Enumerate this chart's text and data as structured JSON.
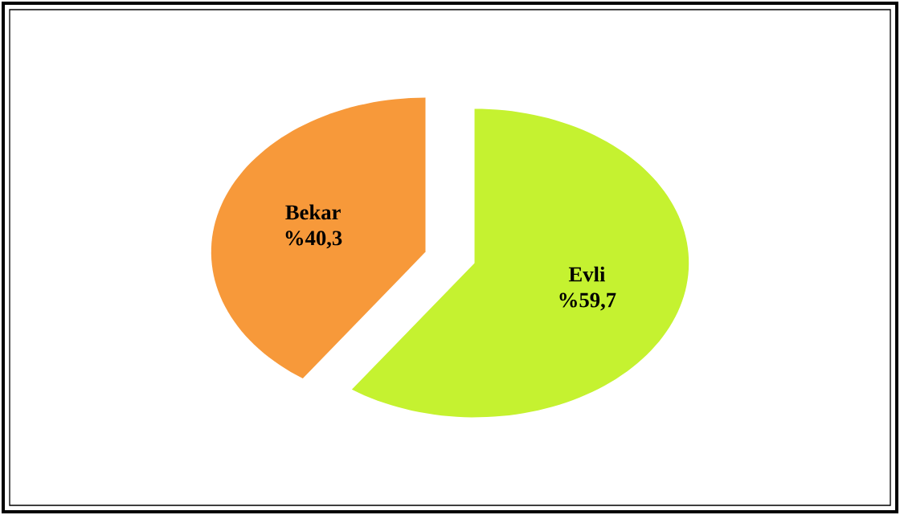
{
  "chart_data": {
    "type": "pie",
    "categories": [
      "Evli",
      "Bekar"
    ],
    "values": [
      59.7,
      40.3
    ],
    "colors": [
      "#c5f230",
      "#f7993a"
    ],
    "value_labels": [
      "%59,7",
      "%40,3"
    ]
  }
}
